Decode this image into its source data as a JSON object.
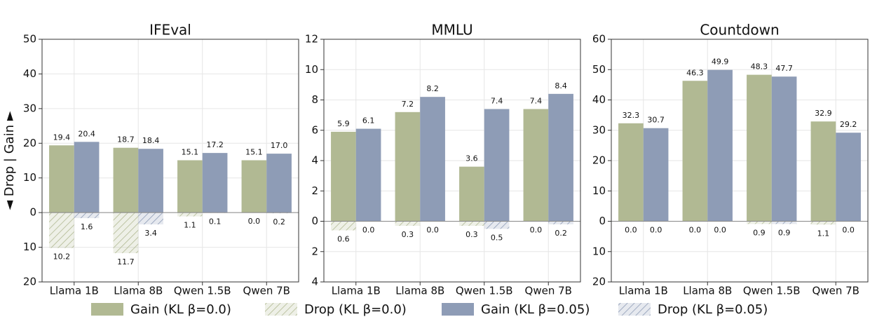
{
  "chart_data": [
    {
      "type": "bar",
      "title": "IFEval",
      "ylabel": "◄ Drop | Gain ►",
      "categories": [
        "Llama 1B",
        "Llama 8B",
        "Qwen 1.5B",
        "Qwen 7B"
      ],
      "ylim": [
        -20,
        50
      ],
      "yticks": [
        {
          "value": -20,
          "label": "20"
        },
        {
          "value": -10,
          "label": "10"
        },
        0,
        10,
        20,
        30,
        40,
        50
      ],
      "grid": true,
      "series": [
        {
          "name": "Gain (KL β=0.0)",
          "color": "#b1b993",
          "hatch": false,
          "values": [
            19.4,
            18.7,
            15.1,
            15.1
          ],
          "value_labels": [
            "19.4",
            "18.7",
            "15.1",
            "15.1"
          ]
        },
        {
          "name": "Drop (KL β=0.0)",
          "color": "#b1b993",
          "hatch": true,
          "values": [
            10.2,
            11.7,
            1.1,
            0.0
          ],
          "value_labels": [
            "10.2",
            "11.7",
            "1.1",
            "0.0"
          ]
        },
        {
          "name": "Gain (KL β=0.05)",
          "color": "#8e9cb6",
          "hatch": false,
          "values": [
            20.4,
            18.4,
            17.2,
            17.0
          ],
          "value_labels": [
            "20.4",
            "18.4",
            "17.2",
            "17.0"
          ]
        },
        {
          "name": "Drop (KL β=0.05)",
          "color": "#8e9cb6",
          "hatch": true,
          "values": [
            1.6,
            3.4,
            0.1,
            0.2
          ],
          "value_labels": [
            "1.6",
            "3.4",
            "0.1",
            "0.2"
          ]
        }
      ]
    },
    {
      "type": "bar",
      "title": "MMLU",
      "categories": [
        "Llama 1B",
        "Llama 8B",
        "Qwen 1.5B",
        "Qwen 7B"
      ],
      "ylim": [
        -4,
        12
      ],
      "yticks": [
        {
          "value": -4,
          "label": "4"
        },
        {
          "value": -2,
          "label": "2"
        },
        0,
        2,
        4,
        6,
        8,
        10,
        12
      ],
      "grid": true,
      "series": [
        {
          "name": "Gain (KL β=0.0)",
          "color": "#b1b993",
          "hatch": false,
          "values": [
            5.9,
            7.2,
            3.6,
            7.4
          ],
          "value_labels": [
            "5.9",
            "7.2",
            "3.6",
            "7.4"
          ]
        },
        {
          "name": "Drop (KL β=0.0)",
          "color": "#b1b993",
          "hatch": true,
          "values": [
            0.6,
            0.3,
            0.3,
            0.0
          ],
          "value_labels": [
            "0.6",
            "0.3",
            "0.3",
            "0.0"
          ]
        },
        {
          "name": "Gain (KL β=0.05)",
          "color": "#8e9cb6",
          "hatch": false,
          "values": [
            6.1,
            8.2,
            7.4,
            8.4
          ],
          "value_labels": [
            "6.1",
            "8.2",
            "7.4",
            "8.4"
          ]
        },
        {
          "name": "Drop (KL β=0.05)",
          "color": "#8e9cb6",
          "hatch": true,
          "values": [
            0.0,
            0.0,
            0.5,
            0.2
          ],
          "value_labels": [
            "0.0",
            "0.0",
            "0.5",
            "0.2"
          ]
        }
      ]
    },
    {
      "type": "bar",
      "title": "Countdown",
      "categories": [
        "Llama 1B",
        "Llama 8B",
        "Qwen 1.5B",
        "Qwen 7B"
      ],
      "ylim": [
        -20,
        60
      ],
      "yticks": [
        {
          "value": -20,
          "label": "20"
        },
        {
          "value": -10,
          "label": "10"
        },
        0,
        10,
        20,
        30,
        40,
        50,
        60
      ],
      "grid": true,
      "series": [
        {
          "name": "Gain (KL β=0.0)",
          "color": "#b1b993",
          "hatch": false,
          "values": [
            32.3,
            46.3,
            48.3,
            32.9
          ],
          "value_labels": [
            "32.3",
            "46.3",
            "48.3",
            "32.9"
          ]
        },
        {
          "name": "Drop (KL β=0.0)",
          "color": "#b1b993",
          "hatch": true,
          "values": [
            0.0,
            0.0,
            0.9,
            1.1
          ],
          "value_labels": [
            "0.0",
            "0.0",
            "0.9",
            "1.1"
          ]
        },
        {
          "name": "Gain (KL β=0.05)",
          "color": "#8e9cb6",
          "hatch": false,
          "values": [
            30.7,
            49.9,
            47.7,
            29.2
          ],
          "value_labels": [
            "30.7",
            "49.9",
            "47.7",
            "29.2"
          ]
        },
        {
          "name": "Drop (KL β=0.05)",
          "color": "#8e9cb6",
          "hatch": true,
          "values": [
            0.0,
            0.0,
            0.9,
            0.0
          ],
          "value_labels": [
            "0.0",
            "0.0",
            "0.9",
            "0.0"
          ]
        }
      ]
    }
  ]
}
